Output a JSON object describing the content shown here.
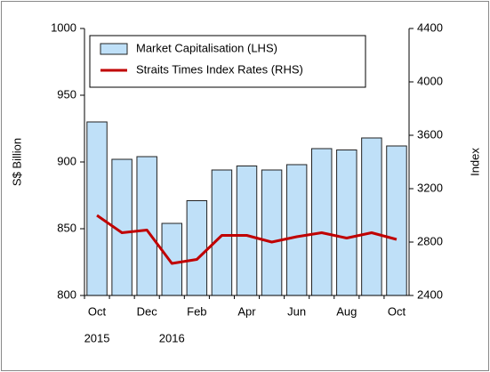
{
  "chart_data": {
    "type": "bar",
    "y_label": "S$ Billion",
    "y2_label": "Index",
    "categories": [
      "Oct",
      null,
      "Dec",
      null,
      "Feb",
      null,
      "Apr",
      null,
      "Jun",
      null,
      "Aug",
      null,
      "Oct"
    ],
    "year_labels": [
      "2015",
      "2016"
    ],
    "series": [
      {
        "name": "Market Capitalisation (LHS)",
        "type": "bar",
        "color": "#bfe0f8",
        "values": [
          930,
          902,
          904,
          854,
          871,
          894,
          897,
          894,
          898,
          910,
          909,
          918,
          912
        ]
      },
      {
        "name": "Straits Times Index Rates (RHS)",
        "type": "line",
        "axis": "y2",
        "color": "#c00000",
        "values": [
          3000,
          2870,
          2890,
          2640,
          2670,
          2850,
          2850,
          2800,
          2840,
          2870,
          2830,
          2870,
          2820
        ]
      }
    ],
    "ylim": [
      800,
      1000
    ],
    "yticks": [
      800,
      850,
      900,
      950,
      1000
    ],
    "y2lim": [
      2400,
      4400
    ],
    "y2ticks": [
      2400,
      2800,
      3200,
      3600,
      4000,
      4400
    ],
    "legend": "upper left"
  }
}
